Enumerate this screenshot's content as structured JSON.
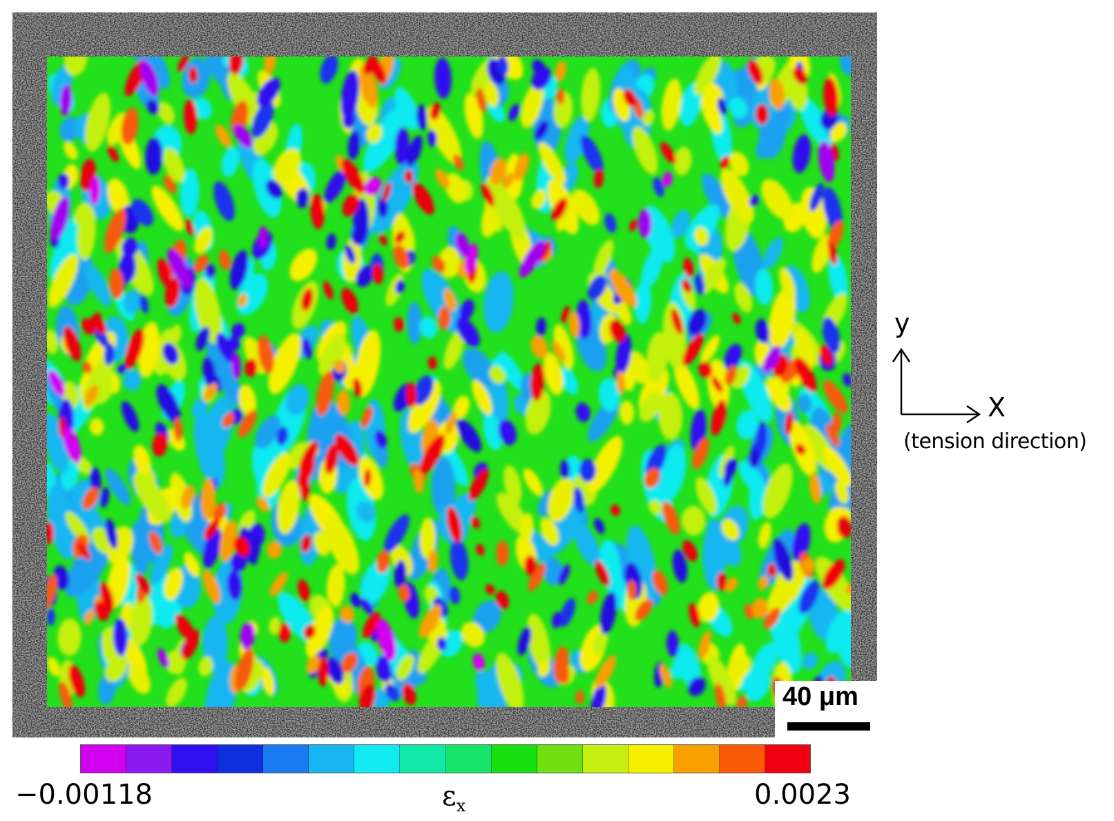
{
  "image": {
    "description_colors": {
      "specimen_background": "#9a9a9a",
      "strain_base": "#22e01b"
    }
  },
  "scale_bar": {
    "label": "40 μm"
  },
  "axes_diagram": {
    "y_label": "y",
    "x_label": "X",
    "x_note": "(tension direction)"
  },
  "colorbar": {
    "min_label": "−0.00118",
    "max_label": "0.0023",
    "quantity_symbol": "ε",
    "quantity_subscript": "x",
    "colors": [
      "#d200f0",
      "#8a1af0",
      "#3010f0",
      "#1030e0",
      "#1a7af0",
      "#18b6f0",
      "#10eaf0",
      "#10e8a8",
      "#18e46a",
      "#16e010",
      "#70e010",
      "#c4f010",
      "#f4f000",
      "#f8a000",
      "#f85a08",
      "#f00010"
    ]
  }
}
